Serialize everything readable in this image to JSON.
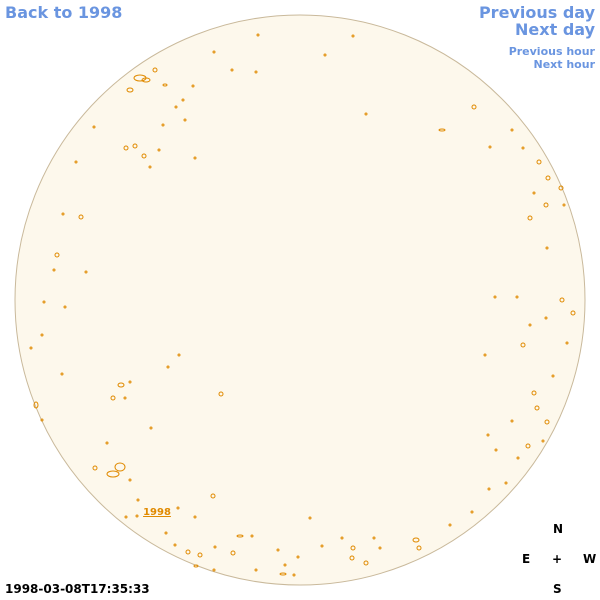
{
  "nav": {
    "back": "Back to 1998",
    "previous_day": "Previous day",
    "next_day": "Next day",
    "previous_hour": "Previous hour",
    "next_hour": "Next hour"
  },
  "image": {
    "year_link": "1998",
    "timestamp": "1998-03-08T17:35:33"
  },
  "compass": {
    "north": "N",
    "east": "E",
    "center": "+",
    "west": "W",
    "south": "S"
  }
}
